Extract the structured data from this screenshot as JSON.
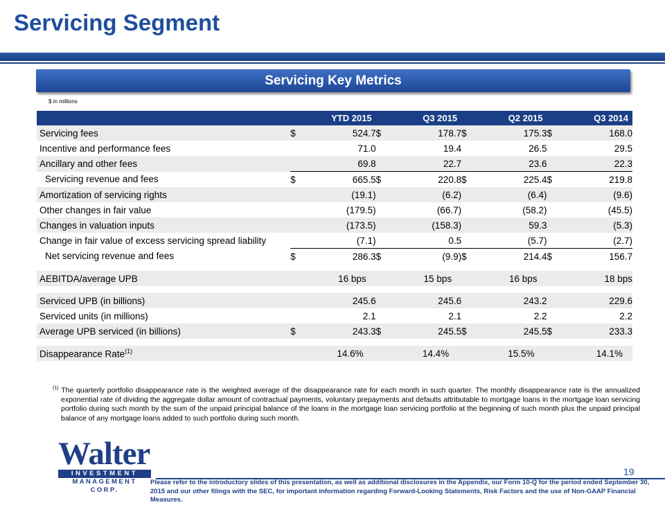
{
  "header": {
    "title": "Servicing Segment"
  },
  "banner": {
    "label": "Servicing Key Metrics"
  },
  "units_note": "$ in millions",
  "table": {
    "columns": [
      "YTD 2015",
      "Q3 2015",
      "Q2 2015",
      "Q3 2014"
    ],
    "rows": [
      {
        "label": "Servicing fees",
        "cur": [
          "$",
          "$",
          "$",
          "$"
        ],
        "values": [
          "524.7",
          "178.7",
          "175.3",
          "168.0"
        ]
      },
      {
        "label": "Incentive and performance fees",
        "values": [
          "71.0",
          "19.4",
          "26.5",
          "29.5"
        ]
      },
      {
        "label": "Ancillary and other fees",
        "values": [
          "69.8",
          "22.7",
          "23.6",
          "22.3"
        ]
      },
      {
        "label": "Servicing revenue and fees",
        "cur": [
          "$",
          "$",
          "$",
          "$"
        ],
        "values": [
          "665.5",
          "220.8",
          "225.4",
          "219.8"
        ]
      },
      {
        "label": "Amortization of servicing rights",
        "values": [
          "(19.1)",
          "(6.2)",
          "(6.4)",
          "(9.6)"
        ]
      },
      {
        "label": "Other changes in fair value",
        "values": [
          "(179.5)",
          "(66.7)",
          "(58.2)",
          "(45.5)"
        ]
      },
      {
        "label": "Changes in valuation inputs",
        "values": [
          "(173.5)",
          "(158.3)",
          "59.3",
          "(5.3)"
        ]
      },
      {
        "label": "Change in fair value of excess servicing spread liability",
        "values": [
          "(7.1)",
          "0.5",
          "(5.7)",
          "(2.7)"
        ]
      },
      {
        "label": "Net servicing revenue and fees",
        "cur": [
          "$",
          "$",
          "$",
          "$"
        ],
        "values": [
          "286.3",
          "(9.9)",
          "214.4",
          "156.7"
        ]
      },
      {
        "label": "AEBITDA/average UPB",
        "values": [
          "16 bps",
          "15 bps",
          "16 bps",
          "18 bps"
        ]
      },
      {
        "label": "Serviced UPB (in billions)",
        "values": [
          "245.6",
          "245.6",
          "243.2",
          "229.6"
        ]
      },
      {
        "label": "Serviced units (in millions)",
        "values": [
          "2.1",
          "2.1",
          "2.2",
          "2.2"
        ]
      },
      {
        "label": "Average UPB serviced (in billions)",
        "cur": [
          "$",
          "$",
          "$",
          "$"
        ],
        "values": [
          "243.3",
          "245.5",
          "245.5",
          "233.3"
        ]
      },
      {
        "label": "Disappearance Rate",
        "label_sup": "(1)",
        "values": [
          "14.6%",
          "14.4%",
          "15.5%",
          "14.1%"
        ]
      }
    ]
  },
  "footnote": {
    "marker": "(1)",
    "text": "The quarterly portfolio disappearance rate is the weighted average of the disappearance rate for each month in such quarter.  The monthly disappearance rate is the annualized exponential rate of dividing the aggregate dollar amount of contractual payments, voluntary prepayments and defaults attributable to mortgage loans in the mortgage loan servicing portfolio during such month by the sum of the unpaid principal balance of the loans in the mortgage loan servicing portfolio at the beginning of such month plus the unpaid principal balance of any mortgage loans added to such portfolio during such month."
  },
  "logo": {
    "word": "Walter",
    "band": "INVESTMENT",
    "sub": "MANAGEMENT CORP."
  },
  "page_number": "19",
  "disclaimer": "Please refer to the introductory slides of this presentation, as well as additional disclosures in the Appendix, our Form 10-Q for the period ended September 30, 2015 and our other filings with the SEC, for important information regarding Forward-Looking Statements, Risk Factors and the use of Non-GAAP Financial Measures.",
  "colors": {
    "brand_blue": "#1f4e9e",
    "header_navy": "#1a3f86",
    "row_shade": "#ebebeb"
  }
}
